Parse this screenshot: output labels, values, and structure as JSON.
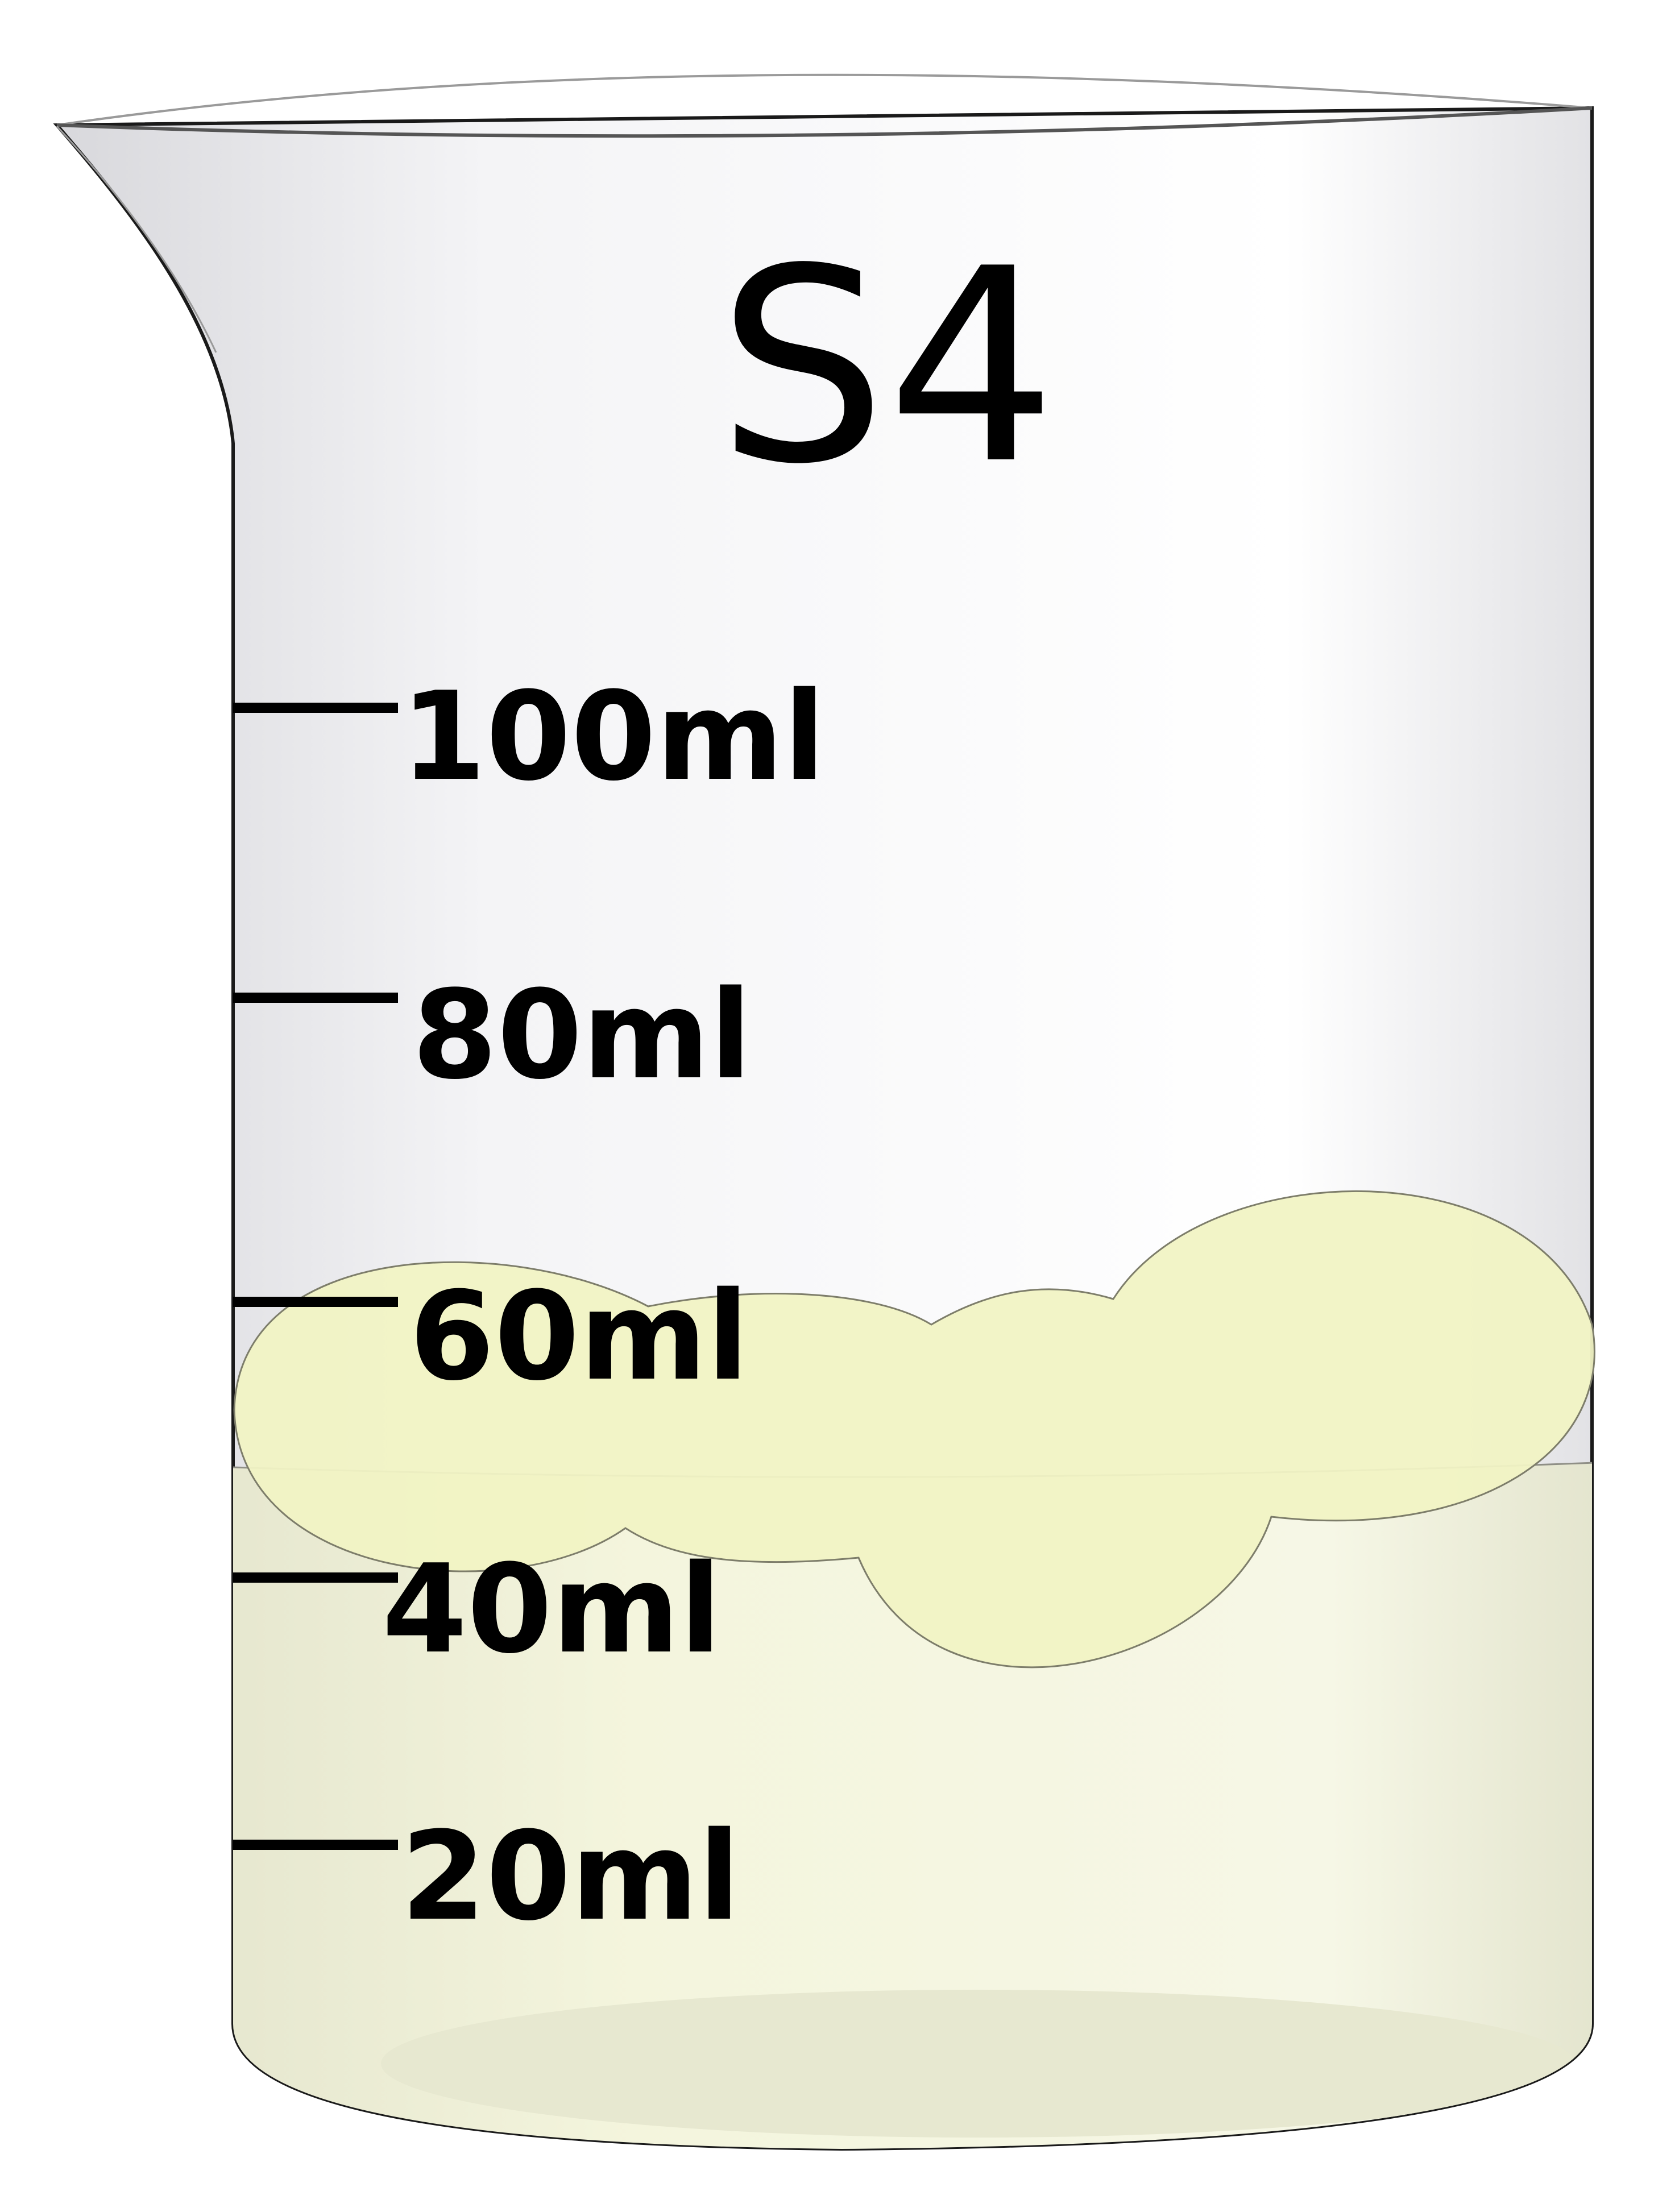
{
  "beaker": {
    "label": "S4",
    "colors": {
      "glass_outline": "#1a1a1a",
      "glass_shade": "#d9d9dc",
      "liquid": "#f3f4dc",
      "foam": "#f1f3c4",
      "foam_outline": "#7d7d6a",
      "tick": "#000000"
    }
  },
  "graduations": [
    {
      "label": "100ml"
    },
    {
      "label": "80ml"
    },
    {
      "label": "60ml"
    },
    {
      "label": "40ml"
    },
    {
      "label": "20ml"
    }
  ]
}
